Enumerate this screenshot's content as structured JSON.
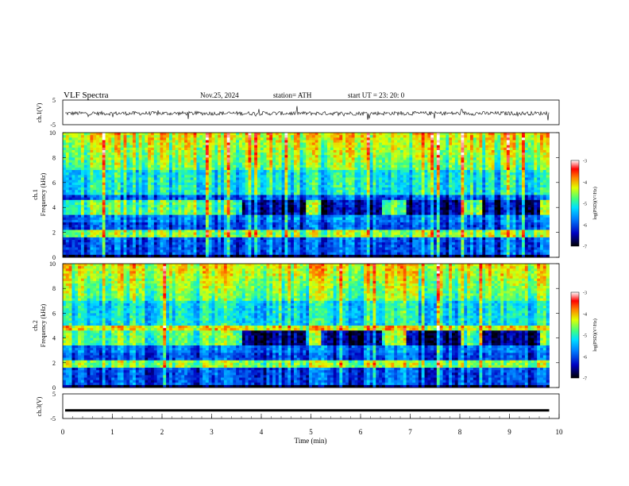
{
  "header": {
    "title": "VLF  Spectra",
    "date": "Nov.25, 2024",
    "station": "station= ATH",
    "start": "start  UT  =   23: 20: 0"
  },
  "chart_data": [
    {
      "type": "line",
      "ylabel": "ch.1(V)",
      "ylim": [
        -5,
        5
      ],
      "yticks": [
        "5",
        "-5"
      ],
      "description_level": "trace around -0.4 V with ±1 V fluctuations"
    },
    {
      "type": "heatmap",
      "ylabel_line1": "ch.1",
      "ylabel_line2": "Frequency  (kHz)",
      "ylim": [
        0,
        10
      ],
      "yticks": [
        "0",
        "2",
        "4",
        "6",
        "8",
        "10"
      ],
      "colorbar": {
        "label": "log(PSD)(V²/Hz)",
        "range": [
          -7,
          -3
        ],
        "ticks": [
          "-3",
          "-4",
          "-5",
          "-6",
          "-7"
        ]
      },
      "bright_segments_min": [
        [
          0,
          3.6
        ],
        [
          4.9,
          5.2
        ],
        [
          6.4,
          6.9
        ],
        [
          8.0,
          8.4
        ],
        [
          9.6,
          9.8
        ]
      ]
    },
    {
      "type": "heatmap",
      "ylabel_line1": "ch.2",
      "ylabel_line2": "Frequency  (kHz)",
      "ylim": [
        0,
        10
      ],
      "yticks": [
        "0",
        "2",
        "4",
        "6",
        "8",
        "10"
      ],
      "colorbar": {
        "label": "log(PSD)(V²/Hz)",
        "range": [
          -7,
          -3
        ],
        "ticks": [
          "-3",
          "-4",
          "-5",
          "-6",
          "-7"
        ]
      },
      "bright_segments_min": [
        [
          0,
          3.6
        ],
        [
          4.9,
          5.2
        ],
        [
          6.4,
          6.9
        ],
        [
          8.0,
          8.4
        ],
        [
          9.6,
          9.8
        ]
      ]
    },
    {
      "type": "line",
      "ylabel": "ch.3(V)",
      "ylim": [
        -5,
        5
      ],
      "yticks": [
        "5",
        "-5"
      ],
      "level": -1.7
    }
  ],
  "xaxis": {
    "label": "Time  (min)",
    "range": [
      0,
      10
    ],
    "ticks": [
      "0",
      "1",
      "2",
      "3",
      "4",
      "5",
      "6",
      "7",
      "8",
      "9",
      "10"
    ],
    "data_end": 9.8
  },
  "colors": {
    "colormap": [
      "#000080",
      "#0000ff",
      "#0080ff",
      "#00ffff",
      "#80ff80",
      "#ffff00",
      "#ff8000",
      "#ff0000",
      "#ffffff"
    ]
  }
}
